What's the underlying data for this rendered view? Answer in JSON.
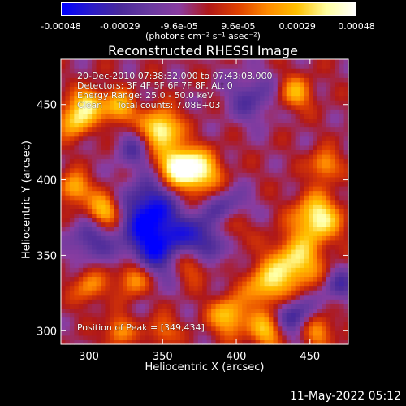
{
  "colorbar": {
    "ticks": [
      "-0.00048",
      "-0.00029",
      "-9.6e-05",
      "9.6e-05",
      "0.00029",
      "0.00048"
    ],
    "units": "(photons cm⁻² s⁻¹ asec⁻²)",
    "colors": [
      "#0000ff",
      "#2a1bc8",
      "#4a2a9a",
      "#6a3aa0",
      "#8a3ca0",
      "#b01818",
      "#e04000",
      "#ff8a00",
      "#ffc000",
      "#ffffa0",
      "#ffffff"
    ]
  },
  "chart_data": {
    "type": "heatmap",
    "title": "Reconstructed RHESSI Image",
    "xlabel": "Heliocentric X (arcsec)",
    "ylabel": "Heliocentric Y (arcsec)",
    "xlim": [
      281,
      476
    ],
    "ylim": [
      291,
      480
    ],
    "x_ticks": [
      300,
      350,
      400,
      450
    ],
    "y_ticks": [
      300,
      350,
      400,
      450
    ],
    "peak": [
      349,
      434
    ],
    "grid": false,
    "zmin": -0.00048,
    "zmax": 0.00048
  },
  "annotations": {
    "time_range": "20-Dec-2010 07:38:32.000 to 07:43:08.000",
    "detectors": "Detectors: 3F 4F 5F 6F 7F 8F, Att 0",
    "energy": "Energy Range: 25.0 - 50.0 keV",
    "method": "Clean     Total counts: 7.08E+03",
    "peak_label": "Position of Peak = [349,434]"
  },
  "timestamp": "11-May-2022 05:12"
}
